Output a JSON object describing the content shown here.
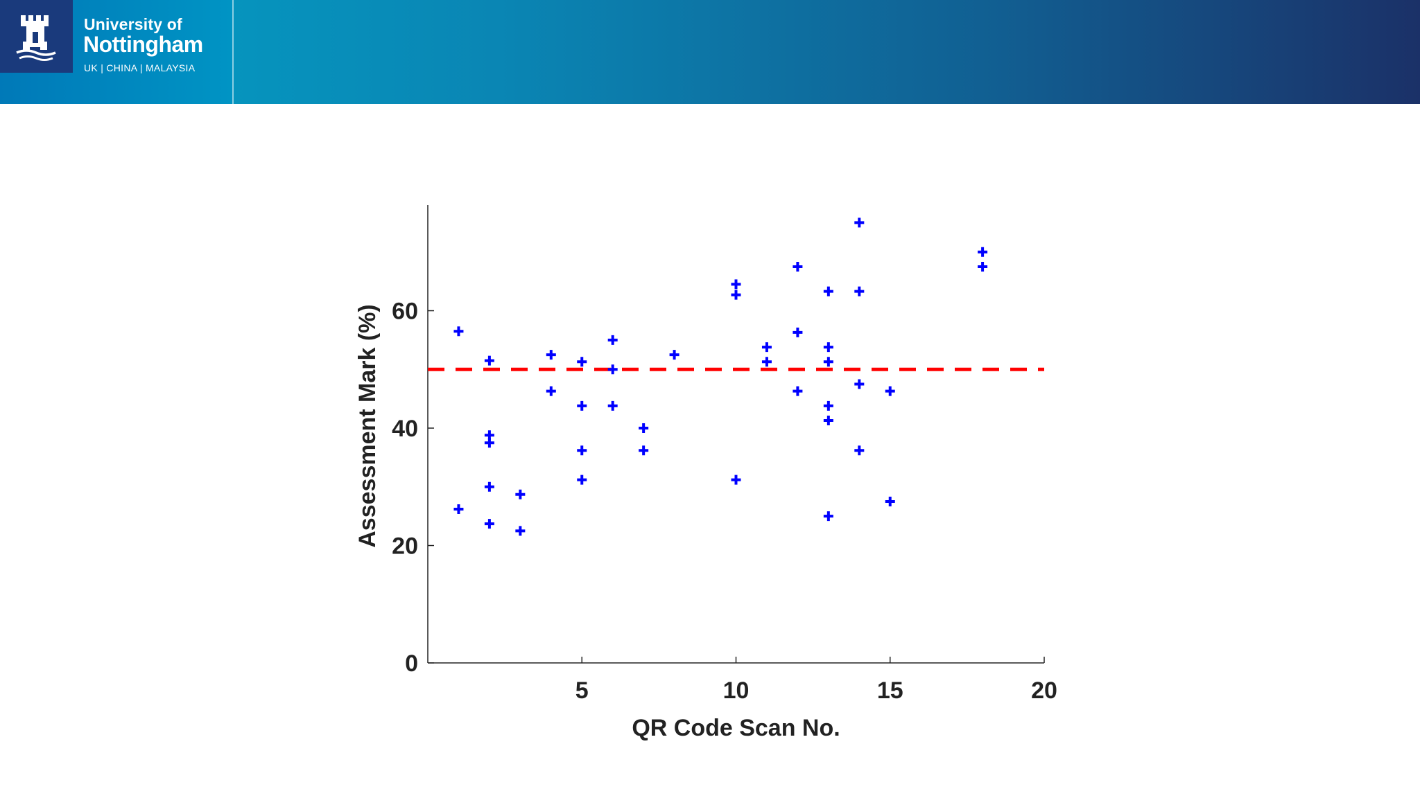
{
  "header": {
    "logo": {
      "line1": "University of",
      "line2": "Nottingham",
      "line3": "UK | CHINA | MALAYSIA",
      "icon": "castle-crest-icon"
    }
  },
  "colors": {
    "marker": "#0000ff",
    "threshold": "#ff0000",
    "axis": "#222222"
  },
  "chart_data": {
    "type": "scatter",
    "title": "",
    "xlabel": "QR Code Scan No.",
    "ylabel": "Assessment Mark (%)",
    "xlim": [
      0,
      20
    ],
    "ylim": [
      0,
      78
    ],
    "xticks": [
      5,
      10,
      15,
      20
    ],
    "yticks": [
      0,
      20,
      40,
      60
    ],
    "grid": false,
    "marker": "+",
    "threshold_line": {
      "y": 50,
      "style": "dashed",
      "color": "#ff0000"
    },
    "points": [
      {
        "x": 1,
        "y": 56.5
      },
      {
        "x": 1,
        "y": 26.2
      },
      {
        "x": 2,
        "y": 51.5
      },
      {
        "x": 2,
        "y": 38.8
      },
      {
        "x": 2,
        "y": 37.5
      },
      {
        "x": 2,
        "y": 30.0
      },
      {
        "x": 2,
        "y": 23.7
      },
      {
        "x": 3,
        "y": 28.7
      },
      {
        "x": 3,
        "y": 22.5
      },
      {
        "x": 4,
        "y": 52.5
      },
      {
        "x": 4,
        "y": 46.3
      },
      {
        "x": 5,
        "y": 51.3
      },
      {
        "x": 5,
        "y": 43.8
      },
      {
        "x": 5,
        "y": 36.2
      },
      {
        "x": 5,
        "y": 31.2
      },
      {
        "x": 6,
        "y": 55.0
      },
      {
        "x": 6,
        "y": 50.0
      },
      {
        "x": 6,
        "y": 43.8
      },
      {
        "x": 7,
        "y": 40.0
      },
      {
        "x": 7,
        "y": 36.2
      },
      {
        "x": 8,
        "y": 52.5
      },
      {
        "x": 10,
        "y": 64.5
      },
      {
        "x": 10,
        "y": 62.7
      },
      {
        "x": 10,
        "y": 31.2
      },
      {
        "x": 11,
        "y": 53.8
      },
      {
        "x": 11,
        "y": 51.3
      },
      {
        "x": 12,
        "y": 67.5
      },
      {
        "x": 12,
        "y": 56.3
      },
      {
        "x": 12,
        "y": 46.3
      },
      {
        "x": 13,
        "y": 63.3
      },
      {
        "x": 13,
        "y": 53.8
      },
      {
        "x": 13,
        "y": 51.3
      },
      {
        "x": 13,
        "y": 43.8
      },
      {
        "x": 13,
        "y": 41.3
      },
      {
        "x": 13,
        "y": 25.0
      },
      {
        "x": 14,
        "y": 75.0
      },
      {
        "x": 14,
        "y": 63.3
      },
      {
        "x": 14,
        "y": 47.5
      },
      {
        "x": 14,
        "y": 36.2
      },
      {
        "x": 15,
        "y": 46.3
      },
      {
        "x": 15,
        "y": 27.5
      },
      {
        "x": 18,
        "y": 70.0
      },
      {
        "x": 18,
        "y": 67.5
      }
    ]
  }
}
